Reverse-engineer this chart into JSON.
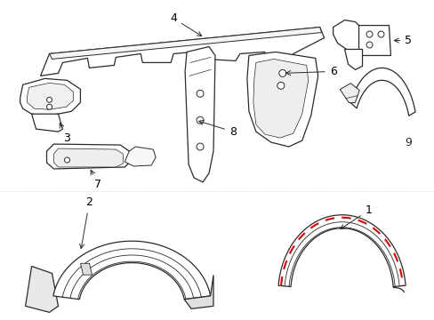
{
  "bg_color": "#ffffff",
  "line_color": "#2a2a2a",
  "red_color": "#dd0000",
  "label_color": "#000000",
  "fig_w": 4.89,
  "fig_h": 3.6,
  "dpi": 100
}
